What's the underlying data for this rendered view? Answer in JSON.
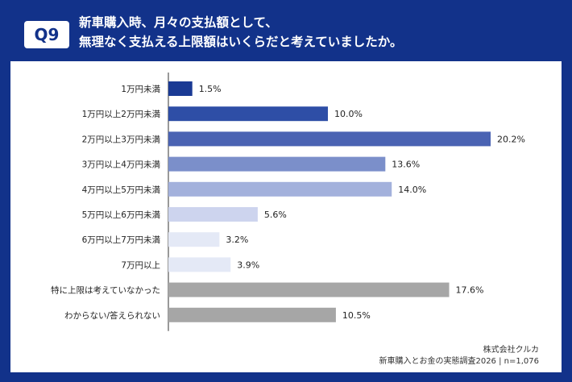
{
  "header": {
    "badge": "Q9",
    "title_line1": "新車購入時、月々の支払額として、",
    "title_line2": "無理なく支払える上限額はいくらだと考えていましたか。"
  },
  "chart_data": {
    "type": "bar",
    "orientation": "horizontal",
    "categories": [
      "1万円未満",
      "1万円以上2万円未満",
      "2万円以上3万円未満",
      "3万円以上4万円未満",
      "4万円以上5万円未満",
      "5万円以上6万円未満",
      "6万円以上7万円未満",
      "7万円以上",
      "特に上限は考えていなかった",
      "わからない/答えられない"
    ],
    "values": [
      1.5,
      10.0,
      20.2,
      13.6,
      14.0,
      5.6,
      3.2,
      3.9,
      17.6,
      10.5
    ],
    "value_labels": [
      "1.5%",
      "10.0%",
      "20.2%",
      "13.6%",
      "14.0%",
      "5.6%",
      "3.2%",
      "3.9%",
      "17.6%",
      "10.5%"
    ],
    "colors": [
      "#1a3a94",
      "#2e4ea6",
      "#4a63b3",
      "#7b8fca",
      "#a3b1dc",
      "#cdd4ee",
      "#e4e9f6",
      "#e4e9f6",
      "#a6a6a6",
      "#a6a6a6"
    ],
    "xlim": [
      0,
      20.2
    ],
    "grid": false,
    "legend": "none"
  },
  "source": {
    "line1": "株式会社クルカ",
    "line2": "新車購入とお金の実態調査2026 | n=1,076"
  }
}
